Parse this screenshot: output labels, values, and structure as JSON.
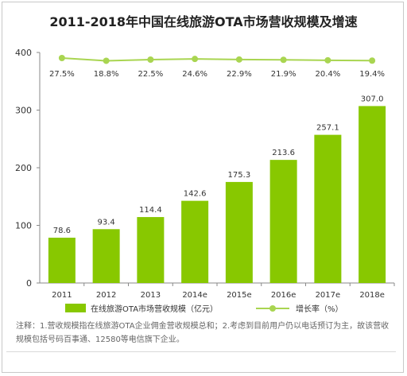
{
  "title": "2011-2018年中国在线旅游OTA市场营收规模及增速",
  "note": "注释：1.营收规模指在线旅游OTA企业佣金营收规模总和；2.考虑到目前用户仍以电话预订为主，故该营收规模包括号码百事通、12580等电信旗下企业。",
  "colors": {
    "bar": "#88c800",
    "line": "#a9d551",
    "axis": "#888888"
  },
  "chart_data": {
    "type": "bar",
    "categories": [
      "2011",
      "2012",
      "2013",
      "2014e",
      "2015e",
      "2016e",
      "2017e",
      "2018e"
    ],
    "series": [
      {
        "name": "在线旅游OTA市场营收规模（亿元）",
        "type": "bar",
        "values": [
          78.6,
          93.4,
          114.4,
          142.6,
          175.3,
          213.6,
          257.1,
          307.0
        ],
        "labels": [
          "78.6",
          "93.4",
          "114.4",
          "142.6",
          "175.3",
          "213.6",
          "257.1",
          "307.0"
        ]
      },
      {
        "name": "增长率（%）",
        "type": "line",
        "values": [
          27.5,
          18.8,
          22.5,
          24.6,
          22.9,
          21.9,
          20.4,
          19.4
        ],
        "labels": [
          "27.5%",
          "18.8%",
          "22.5%",
          "24.6%",
          "22.9%",
          "21.9%",
          "20.4%",
          "19.4%"
        ]
      }
    ],
    "yticks": [
      "0",
      "100",
      "200",
      "300",
      "400"
    ],
    "ylim": [
      0,
      400
    ],
    "grid": false,
    "legend": "bottom"
  }
}
